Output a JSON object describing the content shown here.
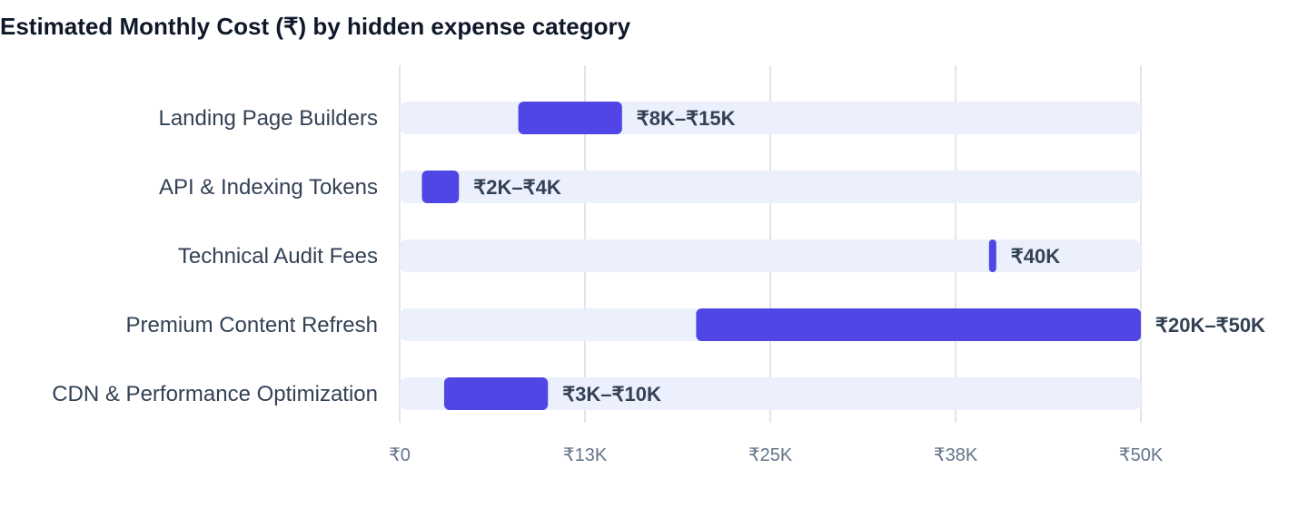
{
  "chart_data": {
    "type": "bar",
    "orientation": "horizontal-range",
    "title": "Estimated Monthly Cost (₹) by hidden expense category",
    "xlabel": "",
    "ylabel": "",
    "xlim": [
      0,
      50000
    ],
    "grid": true,
    "ticks": [
      {
        "value": 0,
        "label": "₹0"
      },
      {
        "value": 12500,
        "label": "₹13K"
      },
      {
        "value": 25000,
        "label": "₹25K"
      },
      {
        "value": 37500,
        "label": "₹38K"
      },
      {
        "value": 50000,
        "label": "₹50K"
      }
    ],
    "categories": [
      "Landing Page Builders",
      "API & Indexing Tokens",
      "Technical Audit Fees",
      "Premium Content Refresh",
      "CDN & Performance Optimization"
    ],
    "ranges": [
      {
        "low": 8000,
        "high": 15000,
        "label": "₹8K–₹15K"
      },
      {
        "low": 1500,
        "high": 4000,
        "label": "₹2K–₹4K"
      },
      {
        "low": 40000,
        "high": 40000,
        "label": "₹40K"
      },
      {
        "low": 20000,
        "high": 50000,
        "label": "₹20K–₹50K"
      },
      {
        "low": 3000,
        "high": 10000,
        "label": "₹3K–₹10K"
      }
    ],
    "colors": {
      "bar": "#4f46e5",
      "track": "#ecf0fd",
      "grid": "#e2e5ea",
      "title": "#0f172a",
      "label": "#334155",
      "tick": "#64748b"
    }
  }
}
